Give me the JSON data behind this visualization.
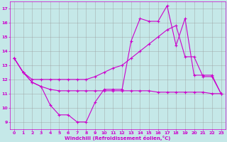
{
  "title": "",
  "xlabel": "Windchill (Refroidissement éolien,°C)",
  "ylabel": "",
  "background_color": "#c5e8e8",
  "plot_bg_color": "#c5e8e8",
  "grid_color": "#999999",
  "line_color": "#cc00cc",
  "spine_color": "#cc00cc",
  "tick_color": "#cc00cc",
  "label_color": "#cc00cc",
  "x_ticks": [
    0,
    1,
    2,
    3,
    4,
    5,
    6,
    7,
    8,
    9,
    10,
    11,
    12,
    13,
    14,
    15,
    16,
    17,
    18,
    19,
    20,
    21,
    22,
    23
  ],
  "y_ticks": [
    9,
    10,
    11,
    12,
    13,
    14,
    15,
    16,
    17
  ],
  "ylim": [
    8.5,
    17.5
  ],
  "xlim": [
    -0.5,
    23.5
  ],
  "series1_x": [
    0,
    1,
    2,
    3,
    4,
    5,
    6,
    7,
    8,
    9,
    10,
    11,
    12,
    13,
    14,
    15,
    16,
    17,
    18,
    19,
    20,
    21,
    22,
    23
  ],
  "series1_y": [
    13.5,
    12.5,
    11.8,
    11.5,
    11.3,
    11.2,
    11.2,
    11.2,
    11.2,
    11.2,
    11.2,
    11.2,
    11.2,
    11.2,
    11.2,
    11.2,
    11.1,
    11.1,
    11.1,
    11.1,
    11.1,
    11.1,
    11.0,
    11.0
  ],
  "series2_x": [
    0,
    1,
    2,
    3,
    4,
    5,
    6,
    7,
    8,
    9,
    10,
    11,
    12,
    13,
    14,
    15,
    16,
    17,
    18,
    19,
    20,
    21,
    22,
    23
  ],
  "series2_y": [
    13.5,
    12.5,
    11.8,
    11.5,
    10.2,
    9.5,
    9.5,
    9.0,
    9.0,
    10.4,
    11.3,
    11.3,
    11.3,
    14.7,
    16.3,
    16.1,
    16.1,
    17.2,
    14.4,
    16.3,
    12.3,
    12.3,
    12.3,
    11.0
  ],
  "series3_x": [
    0,
    1,
    2,
    3,
    4,
    5,
    6,
    7,
    8,
    9,
    10,
    11,
    12,
    13,
    14,
    15,
    16,
    17,
    18,
    19,
    20,
    21,
    22,
    23
  ],
  "series3_y": [
    13.5,
    12.5,
    12.0,
    12.0,
    12.0,
    12.0,
    12.0,
    12.0,
    12.0,
    12.2,
    12.5,
    12.8,
    13.0,
    13.5,
    14.0,
    14.5,
    15.0,
    15.5,
    15.8,
    13.6,
    13.6,
    12.2,
    12.2,
    11.0
  ]
}
